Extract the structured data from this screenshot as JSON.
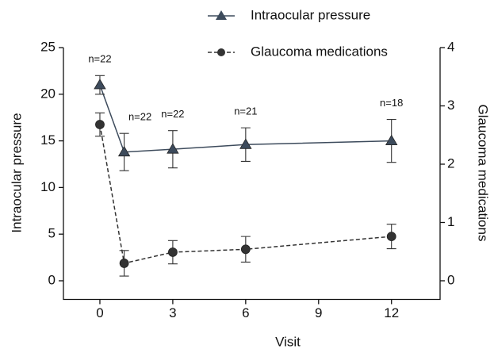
{
  "chart_data": {
    "type": "line",
    "xlabel": "Visit",
    "ylabel": "Intraocular pressure",
    "y2label": "Glaucoma medications",
    "x": [
      0,
      1,
      3,
      6,
      12
    ],
    "xlim": [
      -1.5,
      14
    ],
    "xticks": [
      0,
      3,
      6,
      9,
      12
    ],
    "ylim": [
      -2,
      25
    ],
    "yticks": [
      0,
      5,
      10,
      15,
      20,
      25
    ],
    "y2lim": [
      -0.32,
      4
    ],
    "y2ticks": [
      0,
      1,
      2,
      3,
      4
    ],
    "legend": "top-right",
    "series": [
      {
        "name": "Intraocular pressure",
        "color": "#3d4b5c",
        "marker": "triangle",
        "linestyle": "solid",
        "values": [
          21.0,
          13.8,
          14.1,
          14.6,
          15.0
        ],
        "errors": [
          1.0,
          2.0,
          2.0,
          1.8,
          2.3
        ]
      },
      {
        "name": "Glaucoma medications",
        "color": "#333333",
        "marker": "circle",
        "linestyle": "dashed",
        "axis": "y2",
        "values": [
          2.68,
          0.3,
          0.49,
          0.54,
          0.76
        ],
        "errors": [
          0.2,
          0.22,
          0.2,
          0.22,
          0.21
        ]
      }
    ],
    "annotations": [
      {
        "text": "n=22",
        "x": 0
      },
      {
        "text": "n=22",
        "x": 1
      },
      {
        "text": "n=22",
        "x": 3
      },
      {
        "text": "n=21",
        "x": 6
      },
      {
        "text": "n=18",
        "x": 12
      }
    ]
  }
}
